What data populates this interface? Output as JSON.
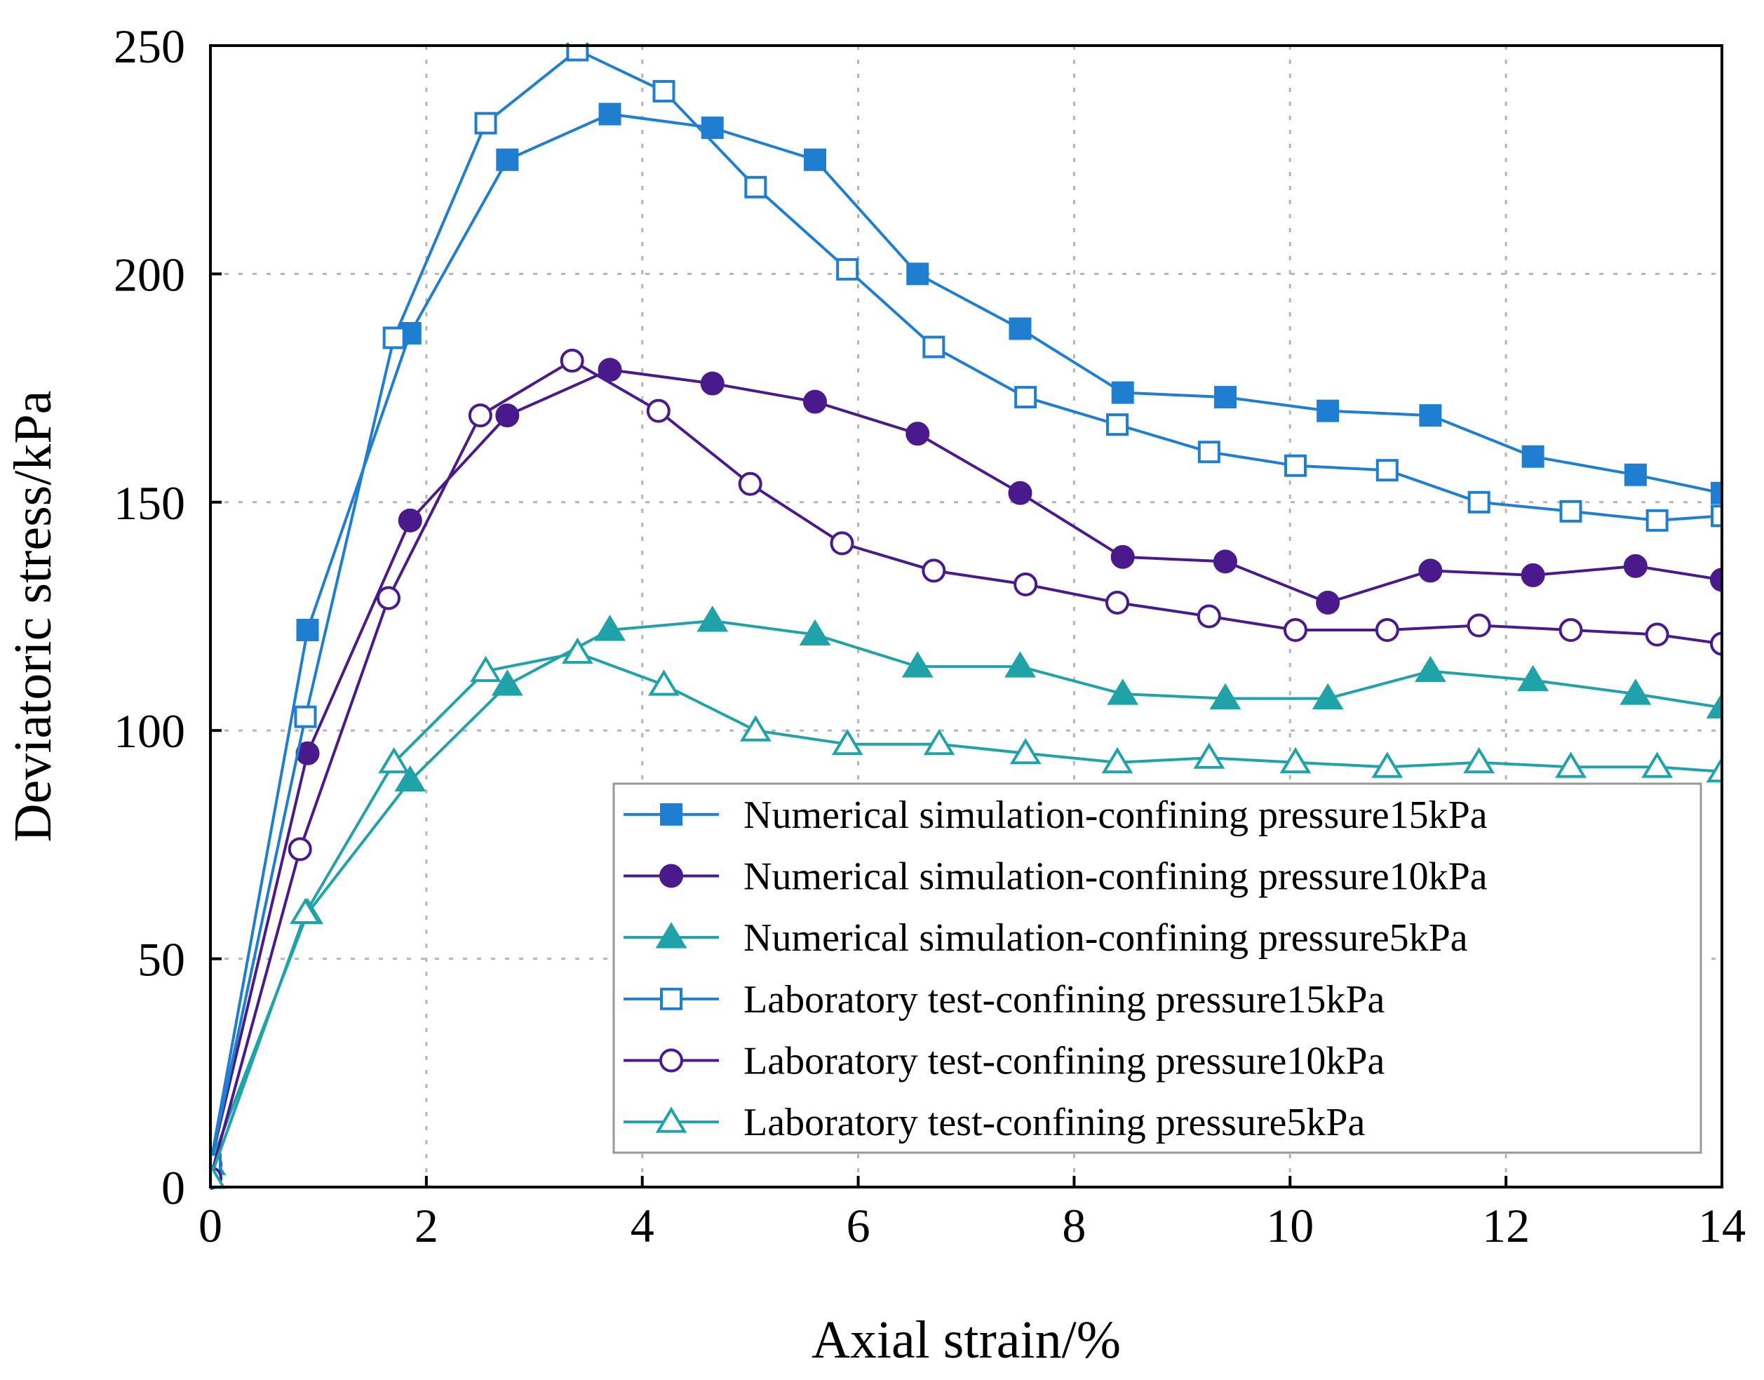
{
  "chart_data": {
    "type": "line",
    "title": "",
    "xlabel": "Axial strain/%",
    "ylabel": "Deviatoric stress/kPa",
    "xlim": [
      0,
      14
    ],
    "ylim": [
      0,
      250
    ],
    "xticks": [
      0,
      2,
      4,
      6,
      8,
      10,
      12,
      14
    ],
    "yticks": [
      0,
      50,
      100,
      150,
      200,
      250
    ],
    "grid": true,
    "legend_position": "bottom-right",
    "series": [
      {
        "name": "Numerical simulation-confining pressure15kPa",
        "color": "#1f7ecf",
        "marker": "square",
        "filled": true,
        "x": [
          0,
          0.9,
          1.85,
          2.75,
          3.7,
          4.65,
          5.6,
          6.55,
          7.5,
          8.45,
          9.4,
          10.35,
          11.3,
          12.25,
          13.2,
          14
        ],
        "y": [
          5,
          122,
          187,
          225,
          235,
          232,
          225,
          200,
          188,
          174,
          173,
          170,
          169,
          160,
          156,
          152
        ]
      },
      {
        "name": "Numerical simulation-confining pressure10kPa",
        "color": "#4a1a8c",
        "marker": "circle",
        "filled": true,
        "x": [
          0,
          0.9,
          1.85,
          2.75,
          3.7,
          4.65,
          5.6,
          6.55,
          7.5,
          8.45,
          9.4,
          10.35,
          11.3,
          12.25,
          13.2,
          14
        ],
        "y": [
          5,
          95,
          146,
          169,
          179,
          176,
          172,
          165,
          152,
          138,
          137,
          128,
          135,
          134,
          136,
          133
        ]
      },
      {
        "name": "Numerical simulation-confining pressure5kPa",
        "color": "#1fa3a8",
        "marker": "triangle",
        "filled": true,
        "x": [
          0,
          0.9,
          1.85,
          2.75,
          3.7,
          4.65,
          5.6,
          6.55,
          7.5,
          8.45,
          9.4,
          10.35,
          11.3,
          12.25,
          13.2,
          14
        ],
        "y": [
          5,
          60,
          89,
          110,
          122,
          124,
          121,
          114,
          114,
          108,
          107,
          107,
          113,
          111,
          108,
          105
        ]
      },
      {
        "name": "Laboratory test-confining pressure15kPa",
        "color": "#1f7ecf",
        "marker": "square",
        "filled": false,
        "x": [
          0,
          0.88,
          1.7,
          2.55,
          3.4,
          4.2,
          5.05,
          5.9,
          6.7,
          7.55,
          8.4,
          9.25,
          10.05,
          10.9,
          11.75,
          12.6,
          13.4,
          14
        ],
        "y": [
          5,
          103,
          186,
          233,
          249,
          240,
          219,
          201,
          184,
          173,
          167,
          161,
          158,
          157,
          150,
          148,
          146,
          147
        ]
      },
      {
        "name": "Laboratory test-confining pressure10kPa",
        "color": "#4a1a8c",
        "marker": "circle",
        "filled": false,
        "x": [
          0,
          0.83,
          1.65,
          2.5,
          3.35,
          4.15,
          5.0,
          5.85,
          6.7,
          7.55,
          8.4,
          9.25,
          10.05,
          10.9,
          11.75,
          12.6,
          13.4,
          14
        ],
        "y": [
          2,
          74,
          129,
          169,
          181,
          170,
          154,
          141,
          135,
          132,
          128,
          125,
          122,
          122,
          123,
          122,
          121,
          119
        ]
      },
      {
        "name": "Laboratory test-confining pressure5kPa",
        "color": "#1fa3a8",
        "marker": "triangle",
        "filled": false,
        "x": [
          0,
          0.88,
          1.7,
          2.55,
          3.4,
          4.2,
          5.05,
          5.9,
          6.75,
          7.55,
          8.4,
          9.25,
          10.05,
          10.9,
          11.75,
          12.6,
          13.4,
          14
        ],
        "y": [
          2,
          60,
          93,
          113,
          117,
          110,
          100,
          97,
          97,
          95,
          93,
          94,
          93,
          92,
          93,
          92,
          92,
          91
        ]
      }
    ]
  }
}
